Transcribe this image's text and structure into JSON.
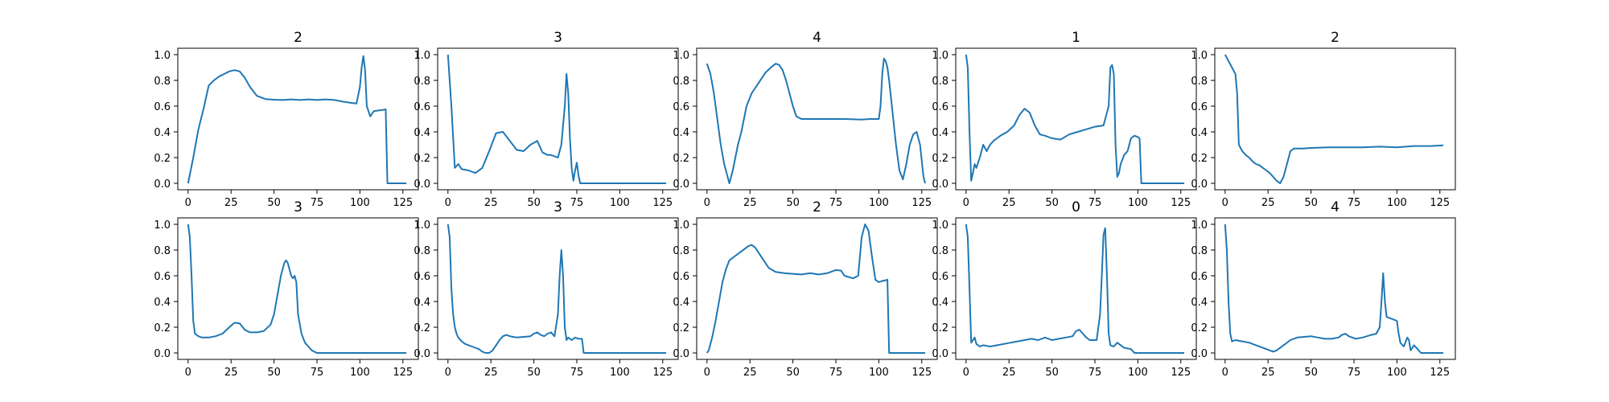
{
  "figure": {
    "background": "#ffffff",
    "line_color": "#1f77b4",
    "axis_color": "#000000"
  },
  "chart_data": [
    {
      "type": "line",
      "title": "2",
      "xlim": [
        -6,
        134
      ],
      "ylim": [
        -0.05,
        1.05
      ],
      "xticks": [
        0,
        25,
        50,
        75,
        100,
        125
      ],
      "yticks": [
        0.0,
        0.2,
        0.4,
        0.6,
        0.8,
        1.0
      ],
      "x": [
        0,
        3,
        6,
        9,
        12,
        15,
        18,
        21,
        24,
        27,
        30,
        33,
        36,
        40,
        45,
        50,
        55,
        60,
        65,
        70,
        75,
        80,
        85,
        90,
        95,
        98,
        100,
        101,
        102,
        103,
        104,
        106,
        108,
        110,
        113,
        115,
        116,
        117,
        120,
        125,
        127
      ],
      "y": [
        0.0,
        0.2,
        0.42,
        0.58,
        0.76,
        0.8,
        0.83,
        0.85,
        0.87,
        0.88,
        0.87,
        0.82,
        0.75,
        0.68,
        0.655,
        0.65,
        0.648,
        0.652,
        0.648,
        0.652,
        0.648,
        0.652,
        0.648,
        0.635,
        0.625,
        0.62,
        0.75,
        0.9,
        0.99,
        0.88,
        0.6,
        0.52,
        0.56,
        0.565,
        0.57,
        0.575,
        0.0,
        0.0,
        0.0,
        0.0,
        0.0
      ]
    },
    {
      "type": "line",
      "title": "3",
      "xlim": [
        -6,
        134
      ],
      "ylim": [
        -0.05,
        1.05
      ],
      "xticks": [
        0,
        25,
        50,
        75,
        100,
        125
      ],
      "yticks": [
        0.0,
        0.2,
        0.4,
        0.6,
        0.8,
        1.0
      ],
      "x": [
        0,
        2,
        4,
        6,
        8,
        12,
        16,
        20,
        24,
        28,
        32,
        36,
        40,
        44,
        48,
        52,
        55,
        58,
        60,
        64,
        66,
        68,
        69,
        70,
        71,
        72,
        73,
        74,
        75,
        76,
        77,
        80,
        90,
        100,
        110,
        120,
        127
      ],
      "y": [
        1.0,
        0.6,
        0.12,
        0.15,
        0.11,
        0.1,
        0.08,
        0.12,
        0.25,
        0.39,
        0.4,
        0.33,
        0.26,
        0.25,
        0.3,
        0.33,
        0.24,
        0.22,
        0.22,
        0.2,
        0.3,
        0.6,
        0.85,
        0.7,
        0.35,
        0.12,
        0.02,
        0.1,
        0.16,
        0.06,
        0.0,
        0.0,
        0.0,
        0.0,
        0.0,
        0.0,
        0.0
      ]
    },
    {
      "type": "line",
      "title": "4",
      "xlim": [
        -6,
        134
      ],
      "ylim": [
        -0.05,
        1.05
      ],
      "xticks": [
        0,
        25,
        50,
        75,
        100,
        125
      ],
      "yticks": [
        0.0,
        0.2,
        0.4,
        0.6,
        0.8,
        1.0
      ],
      "x": [
        0,
        2,
        4,
        6,
        8,
        10,
        12,
        13,
        15,
        18,
        20,
        23,
        26,
        30,
        34,
        38,
        40,
        42,
        44,
        46,
        48,
        50,
        52,
        55,
        60,
        70,
        80,
        90,
        95,
        100,
        101,
        102,
        103,
        104,
        105,
        106,
        108,
        110,
        112,
        114,
        116,
        118,
        120,
        122,
        124,
        126,
        127
      ],
      "y": [
        0.93,
        0.85,
        0.7,
        0.5,
        0.3,
        0.15,
        0.05,
        0.0,
        0.1,
        0.3,
        0.4,
        0.6,
        0.7,
        0.78,
        0.86,
        0.91,
        0.93,
        0.92,
        0.88,
        0.8,
        0.7,
        0.6,
        0.52,
        0.5,
        0.5,
        0.5,
        0.5,
        0.495,
        0.5,
        0.5,
        0.6,
        0.85,
        0.97,
        0.95,
        0.9,
        0.8,
        0.55,
        0.3,
        0.1,
        0.03,
        0.15,
        0.3,
        0.38,
        0.4,
        0.3,
        0.05,
        0.0
      ]
    },
    {
      "type": "line",
      "title": "1",
      "xlim": [
        -6,
        134
      ],
      "ylim": [
        -0.05,
        1.05
      ],
      "xticks": [
        0,
        25,
        50,
        75,
        100,
        125
      ],
      "yticks": [
        0.0,
        0.2,
        0.4,
        0.6,
        0.8,
        1.0
      ],
      "x": [
        0,
        1,
        2,
        3,
        4,
        5,
        6,
        8,
        10,
        12,
        14,
        16,
        18,
        20,
        24,
        28,
        31,
        34,
        37,
        40,
        43,
        46,
        50,
        55,
        60,
        65,
        70,
        75,
        80,
        83,
        84,
        85,
        86,
        87,
        88,
        89,
        90,
        92,
        94,
        96,
        98,
        100,
        101,
        102,
        104,
        106,
        110,
        120,
        127
      ],
      "y": [
        1.0,
        0.9,
        0.4,
        0.02,
        0.08,
        0.15,
        0.12,
        0.2,
        0.3,
        0.25,
        0.3,
        0.33,
        0.35,
        0.37,
        0.4,
        0.45,
        0.53,
        0.58,
        0.55,
        0.45,
        0.38,
        0.37,
        0.35,
        0.34,
        0.38,
        0.4,
        0.42,
        0.44,
        0.45,
        0.6,
        0.9,
        0.92,
        0.85,
        0.3,
        0.05,
        0.08,
        0.15,
        0.22,
        0.25,
        0.35,
        0.37,
        0.36,
        0.35,
        0.0,
        0.0,
        0.0,
        0.0,
        0.0,
        0.0
      ]
    },
    {
      "type": "line",
      "title": "2",
      "xlim": [
        -6,
        134
      ],
      "ylim": [
        -0.05,
        1.05
      ],
      "xticks": [
        0,
        25,
        50,
        75,
        100,
        125
      ],
      "yticks": [
        0.0,
        0.2,
        0.4,
        0.6,
        0.8,
        1.0
      ],
      "x": [
        0,
        2,
        4,
        6,
        7,
        8,
        10,
        12,
        14,
        16,
        18,
        20,
        22,
        24,
        26,
        28,
        30,
        32,
        34,
        36,
        38,
        40,
        45,
        50,
        60,
        70,
        80,
        90,
        100,
        110,
        120,
        127
      ],
      "y": [
        1.0,
        0.95,
        0.9,
        0.85,
        0.7,
        0.3,
        0.25,
        0.22,
        0.2,
        0.17,
        0.15,
        0.14,
        0.12,
        0.1,
        0.08,
        0.05,
        0.02,
        0.0,
        0.05,
        0.15,
        0.25,
        0.27,
        0.27,
        0.275,
        0.28,
        0.28,
        0.28,
        0.285,
        0.28,
        0.29,
        0.29,
        0.295
      ]
    },
    {
      "type": "line",
      "title": "3",
      "xlim": [
        -6,
        134
      ],
      "ylim": [
        -0.05,
        1.05
      ],
      "xticks": [
        0,
        25,
        50,
        75,
        100,
        125
      ],
      "yticks": [
        0.0,
        0.2,
        0.4,
        0.6,
        0.8,
        1.0
      ],
      "x": [
        0,
        1,
        2,
        3,
        4,
        6,
        8,
        12,
        16,
        20,
        24,
        27,
        30,
        33,
        36,
        40,
        44,
        48,
        50,
        52,
        54,
        56,
        57,
        58,
        59,
        60,
        61,
        62,
        63,
        64,
        66,
        68,
        70,
        72,
        75,
        80,
        90,
        100,
        110,
        120,
        127
      ],
      "y": [
        1.0,
        0.9,
        0.6,
        0.25,
        0.15,
        0.13,
        0.12,
        0.12,
        0.13,
        0.15,
        0.2,
        0.235,
        0.23,
        0.18,
        0.16,
        0.16,
        0.17,
        0.22,
        0.3,
        0.45,
        0.6,
        0.7,
        0.72,
        0.7,
        0.65,
        0.6,
        0.58,
        0.6,
        0.55,
        0.3,
        0.15,
        0.08,
        0.05,
        0.02,
        0.0,
        0.0,
        0.0,
        0.0,
        0.0,
        0.0,
        0.0
      ]
    },
    {
      "type": "line",
      "title": "3",
      "xlim": [
        -6,
        134
      ],
      "ylim": [
        -0.05,
        1.05
      ],
      "xticks": [
        0,
        25,
        50,
        75,
        100,
        125
      ],
      "yticks": [
        0.0,
        0.2,
        0.4,
        0.6,
        0.8,
        1.0
      ],
      "x": [
        0,
        1,
        2,
        3,
        4,
        5,
        6,
        8,
        10,
        14,
        18,
        20,
        22,
        24,
        26,
        28,
        30,
        32,
        34,
        36,
        40,
        44,
        48,
        50,
        52,
        54,
        56,
        58,
        60,
        62,
        64,
        65,
        66,
        67,
        68,
        69,
        70,
        72,
        74,
        76,
        78,
        79,
        80,
        85,
        90,
        100,
        110,
        120,
        127
      ],
      "y": [
        1.0,
        0.9,
        0.5,
        0.3,
        0.2,
        0.15,
        0.12,
        0.09,
        0.07,
        0.05,
        0.03,
        0.01,
        0.0,
        0.0,
        0.02,
        0.06,
        0.1,
        0.13,
        0.14,
        0.13,
        0.12,
        0.125,
        0.13,
        0.15,
        0.16,
        0.14,
        0.13,
        0.15,
        0.16,
        0.13,
        0.3,
        0.6,
        0.8,
        0.6,
        0.2,
        0.1,
        0.12,
        0.1,
        0.12,
        0.11,
        0.11,
        0.0,
        0.0,
        0.0,
        0.0,
        0.0,
        0.0,
        0.0,
        0.0
      ]
    },
    {
      "type": "line",
      "title": "2",
      "xlim": [
        -6,
        134
      ],
      "ylim": [
        -0.05,
        1.05
      ],
      "xticks": [
        0,
        25,
        50,
        75,
        100,
        125
      ],
      "yticks": [
        0.0,
        0.2,
        0.4,
        0.6,
        0.8,
        1.0
      ],
      "x": [
        0,
        1,
        3,
        5,
        7,
        9,
        11,
        13,
        16,
        19,
        22,
        24,
        26,
        28,
        30,
        33,
        36,
        40,
        45,
        50,
        55,
        60,
        65,
        70,
        75,
        78,
        80,
        85,
        88,
        90,
        92,
        94,
        96,
        98,
        100,
        102,
        104,
        105,
        106,
        110,
        120,
        127
      ],
      "y": [
        0.0,
        0.02,
        0.12,
        0.25,
        0.4,
        0.55,
        0.65,
        0.72,
        0.75,
        0.78,
        0.81,
        0.83,
        0.84,
        0.82,
        0.78,
        0.72,
        0.66,
        0.63,
        0.62,
        0.615,
        0.61,
        0.62,
        0.61,
        0.62,
        0.645,
        0.64,
        0.6,
        0.58,
        0.6,
        0.9,
        1.0,
        0.95,
        0.75,
        0.57,
        0.55,
        0.56,
        0.565,
        0.57,
        0.0,
        0.0,
        0.0,
        0.0
      ]
    },
    {
      "type": "line",
      "title": "0",
      "xlim": [
        -6,
        134
      ],
      "ylim": [
        -0.05,
        1.05
      ],
      "xticks": [
        0,
        25,
        50,
        75,
        100,
        125
      ],
      "yticks": [
        0.0,
        0.2,
        0.4,
        0.6,
        0.8,
        1.0
      ],
      "x": [
        0,
        1,
        2,
        3,
        4,
        5,
        6,
        8,
        10,
        14,
        18,
        22,
        26,
        30,
        34,
        38,
        42,
        46,
        50,
        54,
        58,
        62,
        64,
        66,
        68,
        70,
        72,
        76,
        78,
        79,
        80,
        81,
        82,
        83,
        84,
        86,
        88,
        92,
        96,
        98,
        100,
        110,
        120,
        127
      ],
      "y": [
        1.0,
        0.9,
        0.5,
        0.08,
        0.1,
        0.12,
        0.07,
        0.05,
        0.06,
        0.05,
        0.06,
        0.07,
        0.08,
        0.09,
        0.1,
        0.11,
        0.1,
        0.12,
        0.1,
        0.11,
        0.12,
        0.13,
        0.17,
        0.18,
        0.15,
        0.12,
        0.1,
        0.1,
        0.3,
        0.6,
        0.92,
        0.97,
        0.6,
        0.15,
        0.06,
        0.05,
        0.08,
        0.04,
        0.03,
        0.0,
        0.0,
        0.0,
        0.0,
        0.0
      ]
    },
    {
      "type": "line",
      "title": "4",
      "xlim": [
        -6,
        134
      ],
      "ylim": [
        -0.05,
        1.05
      ],
      "xticks": [
        0,
        25,
        50,
        75,
        100,
        125
      ],
      "yticks": [
        0.0,
        0.2,
        0.4,
        0.6,
        0.8,
        1.0
      ],
      "x": [
        0,
        1,
        2,
        3,
        4,
        6,
        10,
        14,
        18,
        22,
        26,
        28,
        30,
        34,
        38,
        42,
        46,
        50,
        54,
        58,
        62,
        66,
        68,
        70,
        72,
        76,
        80,
        85,
        88,
        90,
        91,
        92,
        93,
        94,
        96,
        98,
        100,
        101,
        102,
        104,
        106,
        107,
        108,
        110,
        112,
        114,
        116,
        120,
        127
      ],
      "y": [
        1.0,
        0.8,
        0.4,
        0.15,
        0.09,
        0.1,
        0.09,
        0.08,
        0.06,
        0.04,
        0.02,
        0.01,
        0.02,
        0.06,
        0.1,
        0.12,
        0.125,
        0.13,
        0.12,
        0.11,
        0.11,
        0.12,
        0.14,
        0.15,
        0.13,
        0.11,
        0.12,
        0.14,
        0.15,
        0.2,
        0.4,
        0.62,
        0.4,
        0.28,
        0.27,
        0.26,
        0.25,
        0.15,
        0.08,
        0.05,
        0.12,
        0.1,
        0.02,
        0.06,
        0.03,
        0.0,
        0.0,
        0.0,
        0.0
      ]
    }
  ]
}
